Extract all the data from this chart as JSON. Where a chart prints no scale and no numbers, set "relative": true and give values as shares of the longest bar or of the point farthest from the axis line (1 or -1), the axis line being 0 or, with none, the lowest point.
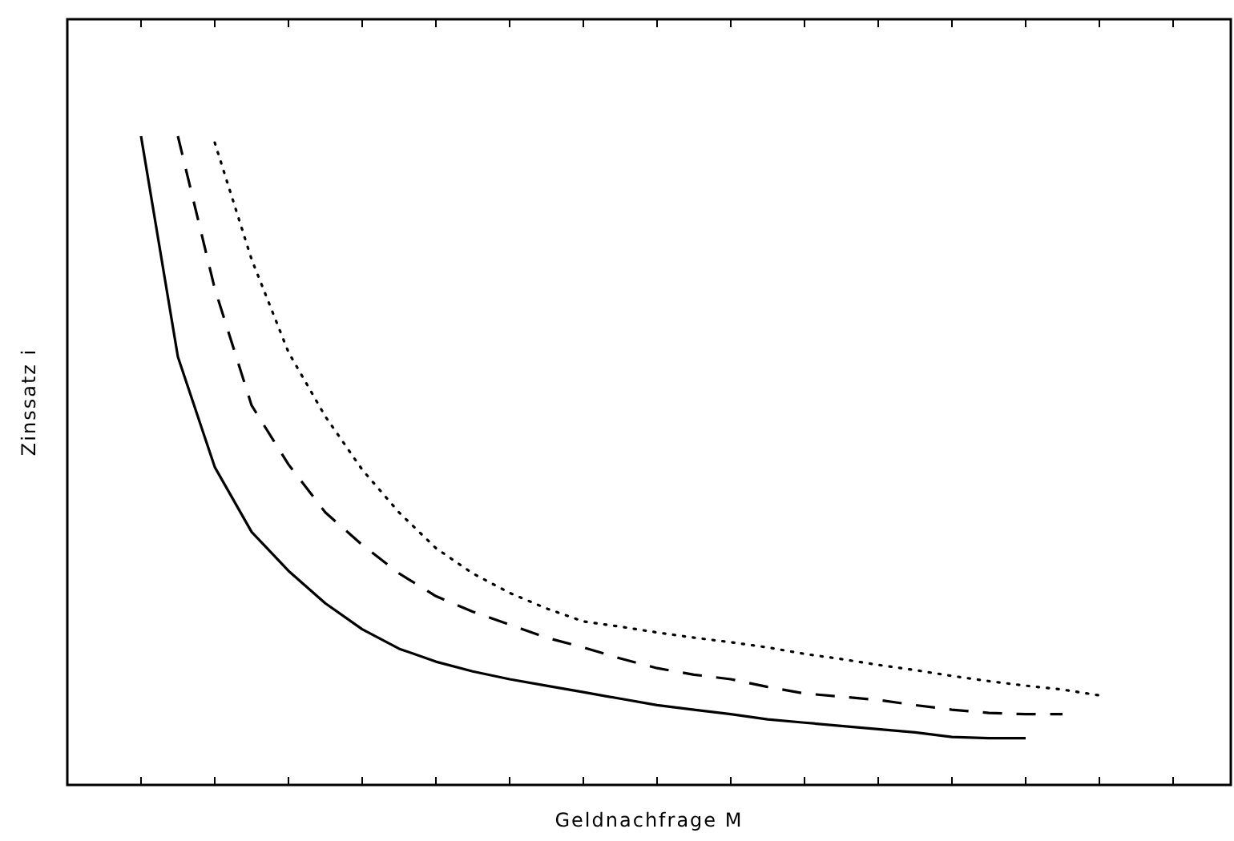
{
  "chart_data": {
    "type": "line",
    "relative": true,
    "xlabel": "Geldnachfrage M",
    "ylabel": "Zinssatz i",
    "categories": [
      null,
      null,
      null,
      null,
      null,
      null,
      null,
      null,
      null,
      null,
      null,
      null,
      null,
      null,
      null,
      null,
      null,
      null,
      null,
      null,
      null,
      null,
      null,
      null,
      null,
      null,
      null,
      null,
      null,
      null,
      null,
      null
    ],
    "series": [
      {
        "color": "#000000",
        "line_style": "solid",
        "values": [
          null,
          null,
          1.0,
          0.66,
          0.49,
          0.39,
          0.33,
          0.28,
          0.24,
          0.21,
          0.19,
          0.175,
          0.163,
          0.153,
          0.143,
          0.133,
          0.123,
          0.116,
          0.109,
          0.101,
          0.096,
          0.091,
          0.086,
          0.081,
          0.074,
          0.072,
          0.072,
          null,
          null,
          null,
          null,
          null
        ]
      },
      {
        "color": "#000000",
        "line_style": "dashed",
        "values": [
          null,
          null,
          null,
          1.0,
          0.765,
          0.585,
          0.494,
          0.42,
          0.37,
          0.326,
          0.291,
          0.267,
          0.247,
          0.227,
          0.212,
          0.195,
          0.18,
          0.17,
          0.163,
          0.151,
          0.141,
          0.136,
          0.131,
          0.123,
          0.116,
          0.111,
          0.109,
          0.109,
          null,
          null,
          null,
          null
        ]
      },
      {
        "color": "#000000",
        "line_style": "dotted",
        "values": [
          null,
          null,
          null,
          null,
          0.99,
          0.81,
          0.667,
          0.568,
          0.486,
          0.42,
          0.365,
          0.326,
          0.296,
          0.272,
          0.252,
          0.244,
          0.235,
          0.227,
          0.22,
          0.212,
          0.202,
          0.194,
          0.185,
          0.177,
          0.168,
          0.16,
          0.153,
          0.147,
          0.138,
          null,
          null,
          null
        ]
      }
    ]
  }
}
